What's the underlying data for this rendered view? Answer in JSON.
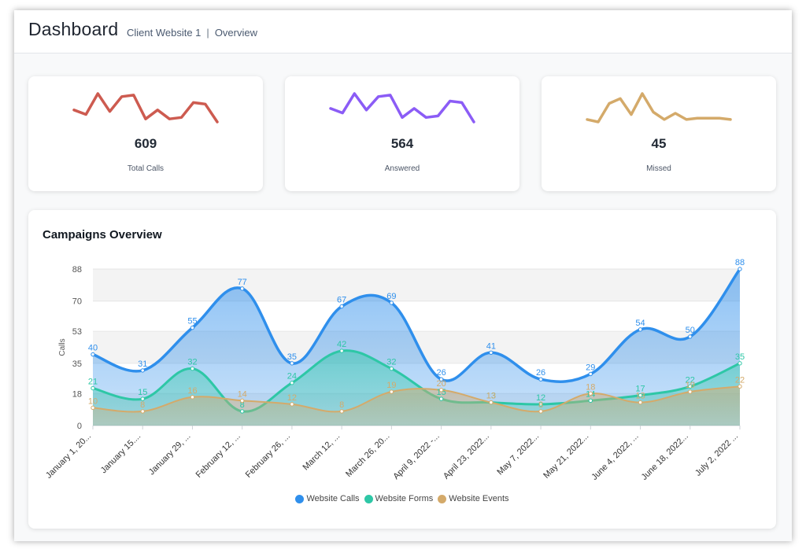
{
  "header": {
    "title": "Dashboard",
    "breadcrumb": [
      "Client Website 1",
      "Overview"
    ]
  },
  "stats": [
    {
      "value": "609",
      "label": "Total Calls",
      "color": "#cd5b50",
      "sparkline": [
        64,
        61,
        75,
        63,
        73,
        74,
        58,
        64,
        58,
        59,
        69,
        68,
        56
      ]
    },
    {
      "value": "564",
      "label": "Answered",
      "color": "#8b5cf6",
      "sparkline": [
        64,
        61,
        74,
        63,
        72,
        73,
        58,
        64,
        58,
        59,
        69,
        68,
        55
      ]
    },
    {
      "value": "45",
      "label": "Missed",
      "color": "#d4aa6a",
      "sparkline": [
        24,
        22,
        37,
        41,
        28,
        45,
        30,
        24,
        29,
        24,
        25,
        25,
        25,
        24
      ]
    }
  ],
  "chart": {
    "title": "Campaigns Overview",
    "colors": {
      "calls": "#2f8fec",
      "forms": "#2ec7a6",
      "events": "#d4aa6a"
    }
  },
  "chart_data": {
    "type": "area",
    "ylabel": "Calls",
    "ylim": [
      0,
      88
    ],
    "yticks": [
      "88",
      "70",
      "53",
      "35",
      "18",
      "0"
    ],
    "categories": [
      "January 1, 20...",
      "January 15....",
      "January 29, ...",
      "February 12, ...",
      "February 26, ...",
      "March 12, ...",
      "March 26, 20...",
      "April 9, 2022 -...",
      "April 23, 2022...",
      "May 7, 2022...",
      "May 21, 2022...",
      "June 4, 2022, ...",
      "June 18, 2022...",
      "July 2, 2022 ..."
    ],
    "series": [
      {
        "name": "Website Calls",
        "values": [
          40,
          31,
          55,
          77,
          35,
          67,
          69,
          26,
          41,
          26,
          29,
          54,
          50,
          88
        ]
      },
      {
        "name": "Website Forms",
        "values": [
          21,
          15,
          32,
          8,
          24,
          42,
          32,
          15,
          13,
          12,
          14,
          17,
          22,
          35
        ]
      },
      {
        "name": "Website Events",
        "values": [
          10,
          8,
          16,
          14,
          12,
          8,
          19,
          20,
          13,
          8,
          18,
          13,
          19,
          22
        ]
      }
    ],
    "legend_position": "bottom"
  }
}
